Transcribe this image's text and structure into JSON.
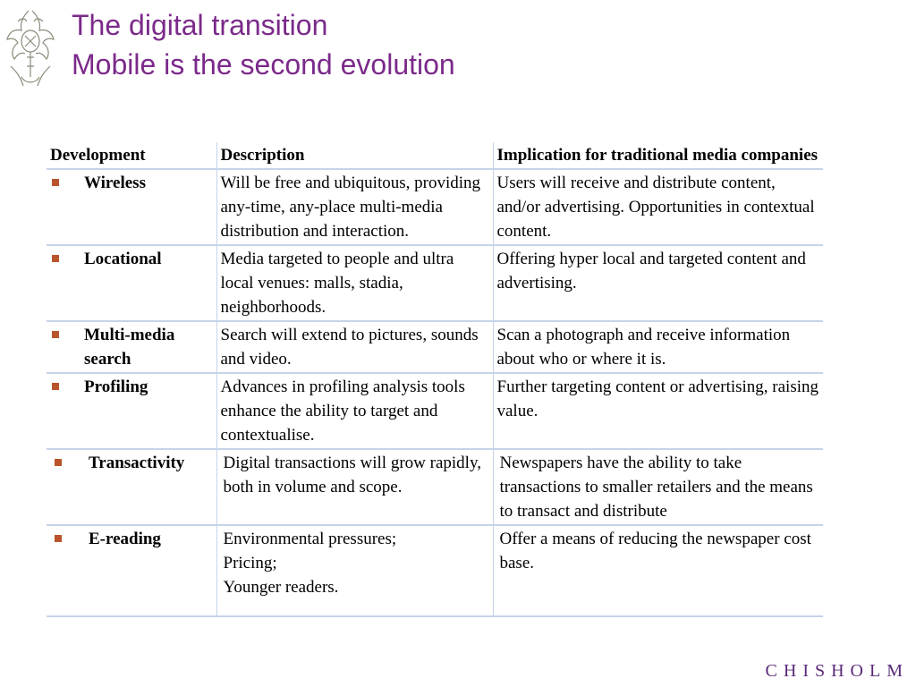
{
  "slide": {
    "title_line1": "The digital transition",
    "title_line2": "Mobile is the second evolution",
    "footer_brand": "CHISHOLM"
  },
  "table": {
    "headers": [
      "Development",
      "Description",
      "Implication for traditional media companies"
    ],
    "rows": [
      {
        "development": "Wireless",
        "description": "Will be free and ubiquitous, providing any-time, any-place multi-media distribution and interaction.",
        "implication": "Users will receive and distribute content, and/or advertising. Opportunities in contextual content."
      },
      {
        "development": "Locational",
        "description": "Media targeted to people and ultra local venues: malls, stadia, neighborhoods.",
        "implication": "Offering hyper local and targeted content and advertising."
      },
      {
        "development": "Multi-media search",
        "description": "Search will extend to pictures, sounds and video.",
        "implication": "Scan a photograph and receive information about who or where it is."
      },
      {
        "development": "Profiling",
        "description": "Advances in profiling analysis tools enhance the ability to target and contextualise.",
        "implication": "Further targeting content or advertising, raising value."
      },
      {
        "development": "Transactivity",
        "description": "Digital transactions will grow rapidly, both in volume and scope.",
        "implication": "Newspapers have the ability to take transactions to smaller retailers and the means to transact and distribute"
      },
      {
        "development": "E-reading",
        "description": "Environmental pressures;\nPricing;\nYounger readers.",
        "implication": "Offer a means of reducing the newspaper cost base."
      }
    ]
  },
  "colors": {
    "title": "#7b2a8a",
    "bullet": "#b9542b",
    "rule": "#c6d3ea"
  },
  "icons": {
    "logo": "chisholm-crest-logo"
  }
}
